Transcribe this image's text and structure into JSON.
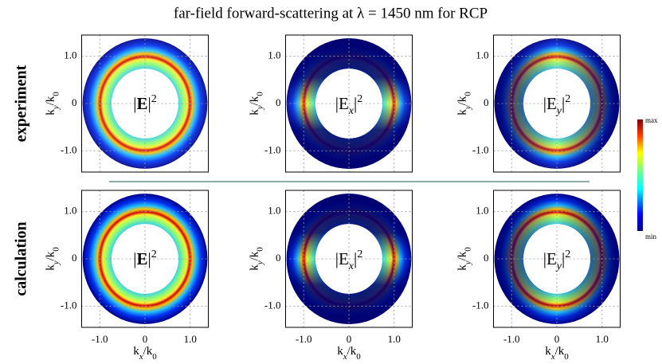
{
  "title": "far-field forward-scattering at λ = 1450 nm for RCP",
  "rows": [
    "experiment",
    "calculation"
  ],
  "columns": [
    {
      "open": "|",
      "field": "E",
      "close": "|",
      "sup": "2"
    },
    {
      "open": "|E",
      "sub": "x",
      "close": "|",
      "sup": "2"
    },
    {
      "open": "|E",
      "sub": "y",
      "close": "|",
      "sup": "2"
    }
  ],
  "x_label": {
    "k": "k",
    "sub": "x",
    "over": "/k",
    "sub0": "0"
  },
  "y_label": {
    "k": "k",
    "sub": "y",
    "over": "/k",
    "sub0": "0"
  },
  "xlim": [
    -1.4,
    1.4
  ],
  "ylim": [
    -1.45,
    1.45
  ],
  "ticks": [
    {
      "value": -1,
      "label": "-1.0"
    },
    0,
    {
      "value": 1,
      "label": "1.0"
    }
  ],
  "colorbar": {
    "max": "max",
    "min": "min"
  }
}
